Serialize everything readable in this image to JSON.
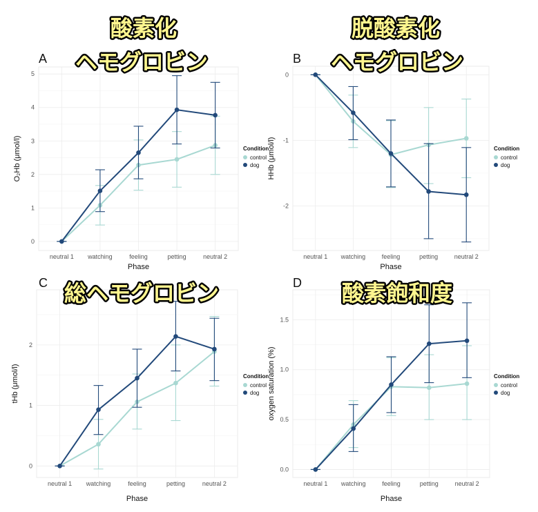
{
  "titles": {
    "A": [
      "酸素化",
      "ヘモグロビン"
    ],
    "B": [
      "脱酸素化",
      "ヘモグロビン"
    ],
    "C": [
      "総ヘモグロビン"
    ],
    "D": [
      "酸素飽和度"
    ]
  },
  "colors": {
    "control": "#a8d8d2",
    "dog": "#22497a"
  },
  "chart_data": [
    {
      "panel": "A",
      "type": "line",
      "xlabel": "Phase",
      "ylabel": "O₂Hb (μmol/l)",
      "categories": [
        "neutral 1",
        "watching",
        "feeling",
        "petting",
        "neutral 2"
      ],
      "yticks": [
        0,
        1,
        2,
        3,
        4,
        5
      ],
      "ylim": [
        -0.27,
        5.21
      ],
      "legend_title": "Condition",
      "legend_position": "right",
      "series": [
        {
          "name": "control",
          "values": [
            0,
            1.08,
            2.28,
            2.45,
            2.87
          ],
          "lower": [
            0,
            0.49,
            1.53,
            1.62,
            2.0
          ],
          "upper": [
            0,
            1.67,
            3.03,
            3.28,
            3.74
          ]
        },
        {
          "name": "dog",
          "values": [
            0,
            1.51,
            2.65,
            3.93,
            3.77
          ],
          "lower": [
            0,
            0.89,
            1.87,
            2.91,
            2.79
          ],
          "upper": [
            0,
            2.14,
            3.44,
            4.95,
            4.75
          ]
        }
      ]
    },
    {
      "panel": "B",
      "type": "line",
      "xlabel": "Phase",
      "ylabel": "HHb (μmol/l)",
      "categories": [
        "neutral 1",
        "watching",
        "feeling",
        "petting",
        "neutral 2"
      ],
      "yticks": [
        0,
        -1,
        -2
      ],
      "ylim": [
        -2.68,
        0.13
      ],
      "legend_title": "Condition",
      "legend_position": "right",
      "series": [
        {
          "name": "control",
          "values": [
            0,
            -0.71,
            -1.22,
            -1.07,
            -0.97
          ],
          "lower": [
            0,
            -1.11,
            -1.72,
            -1.66,
            -1.57
          ],
          "upper": [
            0,
            -0.31,
            -0.7,
            -0.5,
            -0.37
          ]
        },
        {
          "name": "dog",
          "values": [
            0,
            -0.58,
            -1.2,
            -1.78,
            -1.83
          ],
          "lower": [
            0,
            -0.99,
            -1.71,
            -2.5,
            -2.55
          ],
          "upper": [
            0,
            -0.18,
            -0.69,
            -1.05,
            -1.11
          ]
        }
      ]
    },
    {
      "panel": "C",
      "type": "line",
      "xlabel": "Phase",
      "ylabel": "tHb (μmol/l)",
      "categories": [
        "neutral 1",
        "watching",
        "feeling",
        "petting",
        "neutral 2"
      ],
      "yticks": [
        0,
        1,
        2
      ],
      "ylim": [
        -0.19,
        2.91
      ],
      "legend_title": "Condition",
      "legend_position": "right",
      "series": [
        {
          "name": "control",
          "values": [
            0,
            0.36,
            1.06,
            1.37,
            1.89
          ],
          "lower": [
            0,
            -0.05,
            0.61,
            0.75,
            1.32
          ],
          "upper": [
            0,
            0.77,
            1.52,
            2.0,
            2.47
          ]
        },
        {
          "name": "dog",
          "values": [
            0,
            0.93,
            1.45,
            2.14,
            1.93
          ],
          "lower": [
            0,
            0.52,
            0.97,
            1.57,
            1.41
          ],
          "upper": [
            0,
            1.33,
            1.93,
            2.72,
            2.44
          ]
        }
      ]
    },
    {
      "panel": "D",
      "type": "line",
      "xlabel": "Phase",
      "ylabel": "oxygen saturation (%)",
      "categories": [
        "neutral 1",
        "watching",
        "feeling",
        "petting",
        "neutral 2"
      ],
      "yticks": [
        0.0,
        0.5,
        1.0,
        1.5
      ],
      "yticklabels": [
        "0.0",
        "0.5",
        "1.0",
        "1.5"
      ],
      "ylim": [
        -0.08,
        1.8
      ],
      "legend_title": "Condition",
      "legend_position": "right",
      "series": [
        {
          "name": "control",
          "values": [
            0,
            0.45,
            0.83,
            0.82,
            0.86
          ],
          "lower": [
            0,
            0.22,
            0.54,
            0.5,
            0.5
          ],
          "upper": [
            0,
            0.69,
            1.12,
            1.15,
            1.24
          ]
        },
        {
          "name": "dog",
          "values": [
            0,
            0.41,
            0.85,
            1.26,
            1.29
          ],
          "lower": [
            0,
            0.18,
            0.57,
            0.87,
            0.92
          ],
          "upper": [
            0,
            0.65,
            1.13,
            1.65,
            1.67
          ]
        }
      ]
    }
  ]
}
